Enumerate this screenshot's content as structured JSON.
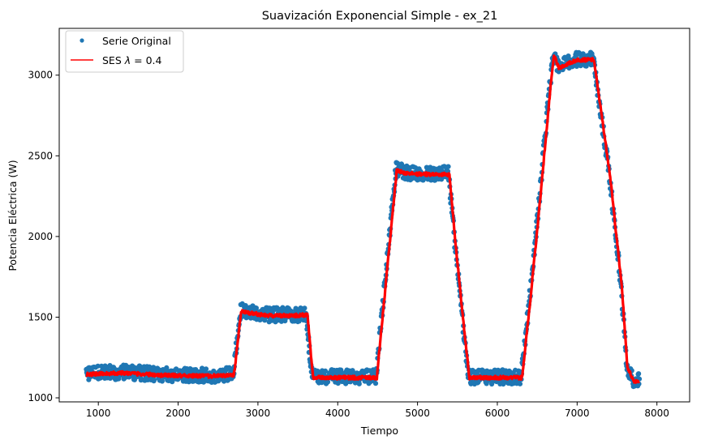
{
  "chart_data": {
    "type": "line",
    "title": "Suavización Exponencial Simple - ex_21",
    "xlabel": "Tiempo",
    "ylabel": "Potencia Eléctrica (W)",
    "xlim": [
      510,
      8410
    ],
    "ylim": [
      975,
      3290
    ],
    "xticks": [
      1000,
      2000,
      3000,
      4000,
      5000,
      6000,
      7000,
      8000
    ],
    "yticks": [
      1000,
      1500,
      2000,
      2500,
      3000
    ],
    "grid": false,
    "legend_position": "top-left",
    "x_range": [
      850,
      7780
    ],
    "series": [
      {
        "name": "Serie Original",
        "kind": "markers",
        "color": "#1f77b4",
        "noise_band": 45,
        "profile": [
          [
            850,
            1150
          ],
          [
            1300,
            1160
          ],
          [
            1800,
            1145
          ],
          [
            2400,
            1140
          ],
          [
            2690,
            1145
          ],
          [
            2780,
            1540
          ],
          [
            3100,
            1515
          ],
          [
            3450,
            1515
          ],
          [
            3600,
            1520
          ],
          [
            3680,
            1130
          ],
          [
            4100,
            1130
          ],
          [
            4480,
            1130
          ],
          [
            4550,
            1500
          ],
          [
            4730,
            2420
          ],
          [
            4850,
            2395
          ],
          [
            5200,
            2390
          ],
          [
            5390,
            2390
          ],
          [
            5460,
            2000
          ],
          [
            5570,
            1450
          ],
          [
            5640,
            1130
          ],
          [
            5900,
            1130
          ],
          [
            6300,
            1130
          ],
          [
            6400,
            1600
          ],
          [
            6500,
            2100
          ],
          [
            6660,
            2950
          ],
          [
            6700,
            3130
          ],
          [
            6760,
            3050
          ],
          [
            7000,
            3100
          ],
          [
            7200,
            3100
          ],
          [
            7400,
            2400
          ],
          [
            7550,
            1700
          ],
          [
            7620,
            1200
          ],
          [
            7700,
            1110
          ],
          [
            7780,
            1110
          ]
        ]
      },
      {
        "name": "SES λ = 0.4",
        "kind": "line",
        "color": "#ff0000",
        "profile": [
          [
            850,
            1145
          ],
          [
            1300,
            1155
          ],
          [
            1800,
            1140
          ],
          [
            2400,
            1135
          ],
          [
            2700,
            1140
          ],
          [
            2790,
            1535
          ],
          [
            3100,
            1510
          ],
          [
            3450,
            1510
          ],
          [
            3620,
            1515
          ],
          [
            3690,
            1125
          ],
          [
            4100,
            1125
          ],
          [
            4490,
            1125
          ],
          [
            4560,
            1490
          ],
          [
            4740,
            2410
          ],
          [
            4850,
            2390
          ],
          [
            5200,
            2385
          ],
          [
            5400,
            2385
          ],
          [
            5470,
            1990
          ],
          [
            5580,
            1440
          ],
          [
            5650,
            1125
          ],
          [
            5900,
            1125
          ],
          [
            6310,
            1125
          ],
          [
            6410,
            1590
          ],
          [
            6510,
            2090
          ],
          [
            6670,
            2940
          ],
          [
            6710,
            3120
          ],
          [
            6770,
            3045
          ],
          [
            7000,
            3095
          ],
          [
            7210,
            3095
          ],
          [
            7410,
            2390
          ],
          [
            7560,
            1690
          ],
          [
            7630,
            1190
          ],
          [
            7710,
            1105
          ],
          [
            7780,
            1105
          ]
        ]
      }
    ]
  },
  "legend": {
    "original_label": "Serie Original",
    "ses_prefix": "SES ",
    "ses_lambda": "λ",
    "ses_suffix": " = 0.4"
  }
}
